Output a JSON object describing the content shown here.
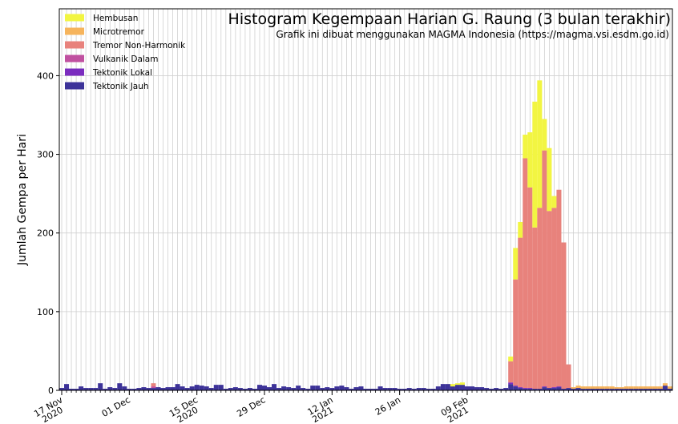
{
  "chart_data": {
    "type": "bar",
    "stacked": true,
    "title": "Histogram Kegempaan Harian G. Raung (3 bulan terakhir)",
    "subtitle": "Grafik ini dibuat menggunakan MAGMA Indonesia (https://magma.vsi.esdm.go.id)",
    "xlabel": "",
    "ylabel": "Jumlah Gempa per Hari",
    "ylim": [
      0,
      485
    ],
    "yticks": [
      0,
      100,
      200,
      300,
      400
    ],
    "grid": true,
    "legend_position": "top-left",
    "x_start": "2020-11-17",
    "xticks": [
      {
        "date": "2020-11-17",
        "label": "17 Nov\n2020"
      },
      {
        "date": "2020-12-01",
        "label": "01 Dec"
      },
      {
        "date": "2020-12-15",
        "label": "15 Dec\n2020"
      },
      {
        "date": "2020-12-29",
        "label": "29 Dec"
      },
      {
        "date": "2021-01-12",
        "label": "12 Jan\n2021"
      },
      {
        "date": "2021-01-26",
        "label": "26 Jan"
      },
      {
        "date": "2021-02-09",
        "label": "09 Feb\n2021"
      }
    ],
    "series": [
      {
        "name": "Tektonik Jauh",
        "color": "#3d3399",
        "values": [
          3,
          8,
          2,
          2,
          5,
          3,
          3,
          3,
          9,
          2,
          4,
          3,
          9,
          5,
          2,
          2,
          3,
          4,
          3,
          3,
          4,
          3,
          4,
          4,
          8,
          5,
          3,
          5,
          7,
          6,
          5,
          3,
          7,
          7,
          2,
          3,
          4,
          3,
          2,
          3,
          2,
          7,
          6,
          4,
          8,
          3,
          5,
          4,
          3,
          6,
          3,
          2,
          6,
          6,
          3,
          4,
          3,
          5,
          6,
          4,
          2,
          4,
          5,
          2,
          2,
          2,
          5,
          3,
          3,
          3,
          2,
          2,
          3,
          2,
          3,
          3,
          2,
          2,
          5,
          8,
          8,
          5,
          7,
          7,
          5,
          5,
          4,
          4,
          3,
          2,
          3,
          2,
          3,
          8,
          5,
          3,
          2,
          2,
          2,
          2,
          4,
          3,
          3,
          4,
          2,
          3,
          2,
          3,
          2,
          2,
          2,
          2,
          2,
          2,
          2,
          2,
          2,
          2,
          2,
          2,
          2,
          2,
          2,
          2,
          2,
          6,
          2
        ]
      },
      {
        "name": "Tektonik Lokal",
        "color": "#7b2cbf",
        "values": [
          0,
          0,
          0,
          0,
          0,
          0,
          0,
          0,
          0,
          0,
          0,
          0,
          0,
          0,
          0,
          0,
          0,
          0,
          0,
          0,
          0,
          0,
          0,
          0,
          0,
          0,
          0,
          0,
          0,
          0,
          0,
          0,
          0,
          0,
          0,
          0,
          0,
          0,
          0,
          0,
          0,
          0,
          0,
          0,
          0,
          0,
          0,
          0,
          0,
          0,
          0,
          0,
          0,
          0,
          0,
          0,
          0,
          0,
          0,
          0,
          0,
          0,
          0,
          0,
          0,
          0,
          0,
          0,
          0,
          0,
          0,
          0,
          0,
          0,
          0,
          0,
          0,
          0,
          0,
          0,
          0,
          0,
          0,
          0,
          0,
          0,
          0,
          0,
          0,
          0,
          0,
          0,
          0,
          2,
          1,
          1,
          1,
          1,
          0,
          0,
          1,
          0,
          1,
          1,
          0,
          0,
          0,
          0,
          0,
          0,
          0,
          0,
          0,
          0,
          0,
          0,
          0,
          0,
          0,
          0,
          0,
          0,
          0,
          0,
          0,
          0,
          0
        ]
      },
      {
        "name": "Vulkanik Dalam",
        "color": "#c050a0",
        "values": [
          0,
          0,
          0,
          0,
          0,
          0,
          0,
          0,
          0,
          0,
          0,
          0,
          0,
          0,
          0,
          0,
          0,
          0,
          0,
          2,
          0,
          0,
          0,
          0,
          0,
          0,
          0,
          0,
          0,
          0,
          0,
          0,
          0,
          0,
          0,
          0,
          0,
          0,
          0,
          0,
          0,
          0,
          0,
          0,
          0,
          0,
          0,
          0,
          0,
          0,
          0,
          0,
          0,
          0,
          0,
          0,
          0,
          0,
          0,
          0,
          0,
          0,
          0,
          0,
          0,
          0,
          0,
          0,
          0,
          0,
          0,
          0,
          0,
          0,
          0,
          0,
          0,
          0,
          0,
          0,
          0,
          0,
          0,
          0,
          0,
          0,
          0,
          0,
          0,
          0,
          0,
          0,
          0,
          0,
          0,
          0,
          0,
          0,
          0,
          0,
          0,
          0,
          0,
          0,
          0,
          0,
          0,
          0,
          0,
          0,
          0,
          0,
          0,
          0,
          0,
          0,
          0,
          0,
          0,
          0,
          0,
          0,
          0,
          0,
          0,
          0,
          0
        ]
      },
      {
        "name": "Tremor Non-Harmonik",
        "color": "#e8827c",
        "values": [
          0,
          0,
          0,
          0,
          0,
          0,
          0,
          0,
          0,
          0,
          0,
          0,
          0,
          0,
          0,
          0,
          0,
          0,
          0,
          4,
          0,
          0,
          0,
          0,
          0,
          0,
          0,
          0,
          0,
          0,
          0,
          0,
          0,
          0,
          0,
          0,
          0,
          0,
          0,
          0,
          0,
          0,
          0,
          0,
          0,
          0,
          0,
          0,
          0,
          0,
          0,
          0,
          0,
          0,
          0,
          0,
          0,
          0,
          0,
          0,
          0,
          0,
          0,
          0,
          0,
          0,
          0,
          0,
          0,
          0,
          0,
          0,
          0,
          0,
          0,
          0,
          0,
          0,
          0,
          0,
          0,
          0,
          0,
          0,
          0,
          0,
          0,
          0,
          0,
          0,
          0,
          0,
          0,
          27,
          135,
          190,
          292,
          255,
          205,
          230,
          300,
          225,
          228,
          250,
          186,
          30,
          0,
          0,
          0,
          0,
          0,
          0,
          0,
          0,
          0,
          0,
          0,
          0,
          0,
          0,
          0,
          0,
          0,
          0,
          0,
          0,
          0
        ]
      },
      {
        "name": "Microtremor",
        "color": "#f6b45c",
        "values": [
          0,
          0,
          0,
          0,
          0,
          0,
          0,
          0,
          0,
          0,
          0,
          0,
          0,
          0,
          0,
          0,
          0,
          0,
          0,
          0,
          0,
          0,
          0,
          0,
          0,
          0,
          0,
          0,
          0,
          0,
          0,
          0,
          0,
          0,
          0,
          0,
          0,
          0,
          0,
          0,
          0,
          0,
          0,
          0,
          0,
          0,
          0,
          0,
          0,
          0,
          0,
          0,
          0,
          0,
          0,
          0,
          0,
          0,
          0,
          0,
          0,
          0,
          0,
          0,
          0,
          0,
          0,
          0,
          0,
          0,
          0,
          0,
          0,
          0,
          0,
          0,
          0,
          0,
          0,
          0,
          0,
          0,
          0,
          0,
          0,
          0,
          0,
          0,
          0,
          0,
          0,
          0,
          0,
          0,
          0,
          0,
          0,
          0,
          0,
          0,
          0,
          0,
          0,
          0,
          0,
          0,
          2,
          3,
          3,
          3,
          3,
          3,
          3,
          3,
          3,
          2,
          2,
          3,
          3,
          3,
          3,
          3,
          3,
          3,
          3,
          3,
          3
        ]
      },
      {
        "name": "Hembusan",
        "color": "#f2f542",
        "values": [
          0,
          0,
          0,
          0,
          0,
          0,
          0,
          0,
          0,
          0,
          0,
          0,
          0,
          0,
          0,
          0,
          0,
          0,
          0,
          0,
          0,
          0,
          0,
          0,
          0,
          0,
          0,
          0,
          0,
          0,
          0,
          0,
          0,
          0,
          0,
          0,
          0,
          0,
          0,
          0,
          0,
          0,
          0,
          0,
          0,
          0,
          0,
          0,
          0,
          0,
          0,
          0,
          0,
          0,
          0,
          0,
          0,
          0,
          0,
          0,
          0,
          0,
          0,
          0,
          0,
          0,
          0,
          0,
          0,
          0,
          0,
          0,
          0,
          0,
          0,
          0,
          0,
          0,
          0,
          0,
          0,
          3,
          2,
          3,
          0,
          0,
          0,
          0,
          0,
          0,
          0,
          0,
          0,
          6,
          40,
          20,
          30,
          70,
          160,
          162,
          40,
          80,
          15,
          0,
          0,
          0,
          0,
          0,
          0,
          0,
          0,
          0,
          0,
          0,
          0,
          0,
          0,
          0,
          0,
          0,
          0,
          0,
          0,
          0,
          0,
          0,
          0
        ]
      }
    ]
  }
}
